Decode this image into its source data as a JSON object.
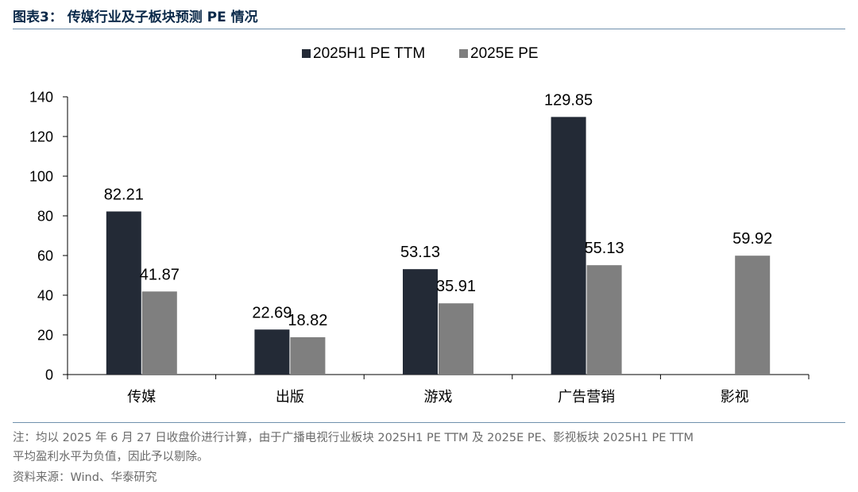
{
  "title": "图表3：  传媒行业及子板块预测 PE 情况",
  "note": {
    "line1": "注：均以 2025 年 6 月 27 日收盘价进行计算，由于广播电视行业板块 2025H1 PE TTM 及 2025E PE、影视板块 2025H1 PE TTM",
    "line2": "平均盈利水平为负值，因此予以剔除。"
  },
  "source": "资料来源：Wind、华泰研究",
  "colors": {
    "series1": "#232a36",
    "series2": "#7f7f7f"
  },
  "chart_data": {
    "type": "bar",
    "categories": [
      "传媒",
      "出版",
      "游戏",
      "广告营销",
      "影视"
    ],
    "series": [
      {
        "name": "2025H1 PE TTM",
        "values": [
          82.21,
          22.69,
          53.13,
          129.85,
          null
        ]
      },
      {
        "name": "2025E PE",
        "values": [
          41.87,
          18.82,
          35.91,
          55.13,
          59.92
        ]
      }
    ],
    "ylim": [
      0,
      140
    ],
    "yticks": [
      0,
      20,
      40,
      60,
      80,
      100,
      120,
      140
    ],
    "legend": "top-center",
    "grid": false
  }
}
